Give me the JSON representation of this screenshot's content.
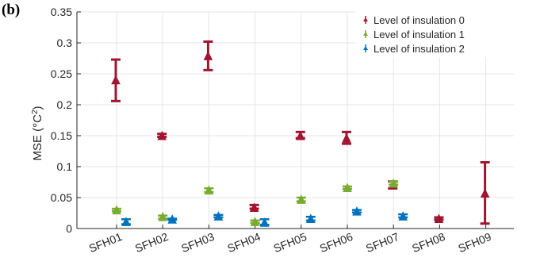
{
  "panel_label": "(b)",
  "chart_data": {
    "type": "scatter",
    "ylabel": "MSE (°C²)",
    "ylabel_main": "MSE (°C",
    "ylabel_sup": "2",
    "ylabel_end": ")",
    "ylim": [
      0,
      0.35
    ],
    "yticks": [
      0,
      0.05,
      0.1,
      0.15,
      0.2,
      0.25,
      0.3,
      0.35
    ],
    "ytick_labels": [
      "0",
      "0.05",
      "0.1",
      "0.15",
      "0.2",
      "0.25",
      "0.3",
      "0.35"
    ],
    "categories": [
      "SFH01",
      "SFH02",
      "SFH03",
      "SFH04",
      "SFH05",
      "SFH06",
      "SFH07",
      "SFH08",
      "SFH09"
    ],
    "grid": true,
    "legend_position": "top-right",
    "series": [
      {
        "name": "Level of insulation 0",
        "color": "#a2142f",
        "values": [
          0.24,
          0.15,
          0.279,
          0.034,
          0.15,
          0.146,
          0.07,
          0.016,
          0.057
        ],
        "lower": [
          0.206,
          0.148,
          0.256,
          0.032,
          0.146,
          0.137,
          0.065,
          0.014,
          0.008
        ],
        "upper": [
          0.273,
          0.153,
          0.302,
          0.038,
          0.156,
          0.156,
          0.076,
          0.018,
          0.107
        ]
      },
      {
        "name": "Level of insulation 1",
        "color": "#77ac30",
        "values": [
          0.03,
          0.019,
          0.062,
          0.011,
          0.047,
          0.066,
          0.073,
          null,
          null
        ],
        "lower": [
          0.028,
          0.016,
          0.059,
          0.009,
          0.044,
          0.064,
          0.071,
          null,
          null
        ],
        "upper": [
          0.032,
          0.021,
          0.065,
          0.013,
          0.05,
          0.068,
          0.076,
          null,
          null
        ]
      },
      {
        "name": "Level of insulation 2",
        "color": "#0072bd",
        "values": [
          0.011,
          0.015,
          0.02,
          0.01,
          0.016,
          0.028,
          0.02,
          null,
          null
        ],
        "lower": [
          0.007,
          0.014,
          0.018,
          0.006,
          0.013,
          0.026,
          0.018,
          null,
          null
        ],
        "upper": [
          0.015,
          0.016,
          0.022,
          0.015,
          0.019,
          0.03,
          0.023,
          null,
          null
        ]
      }
    ]
  }
}
